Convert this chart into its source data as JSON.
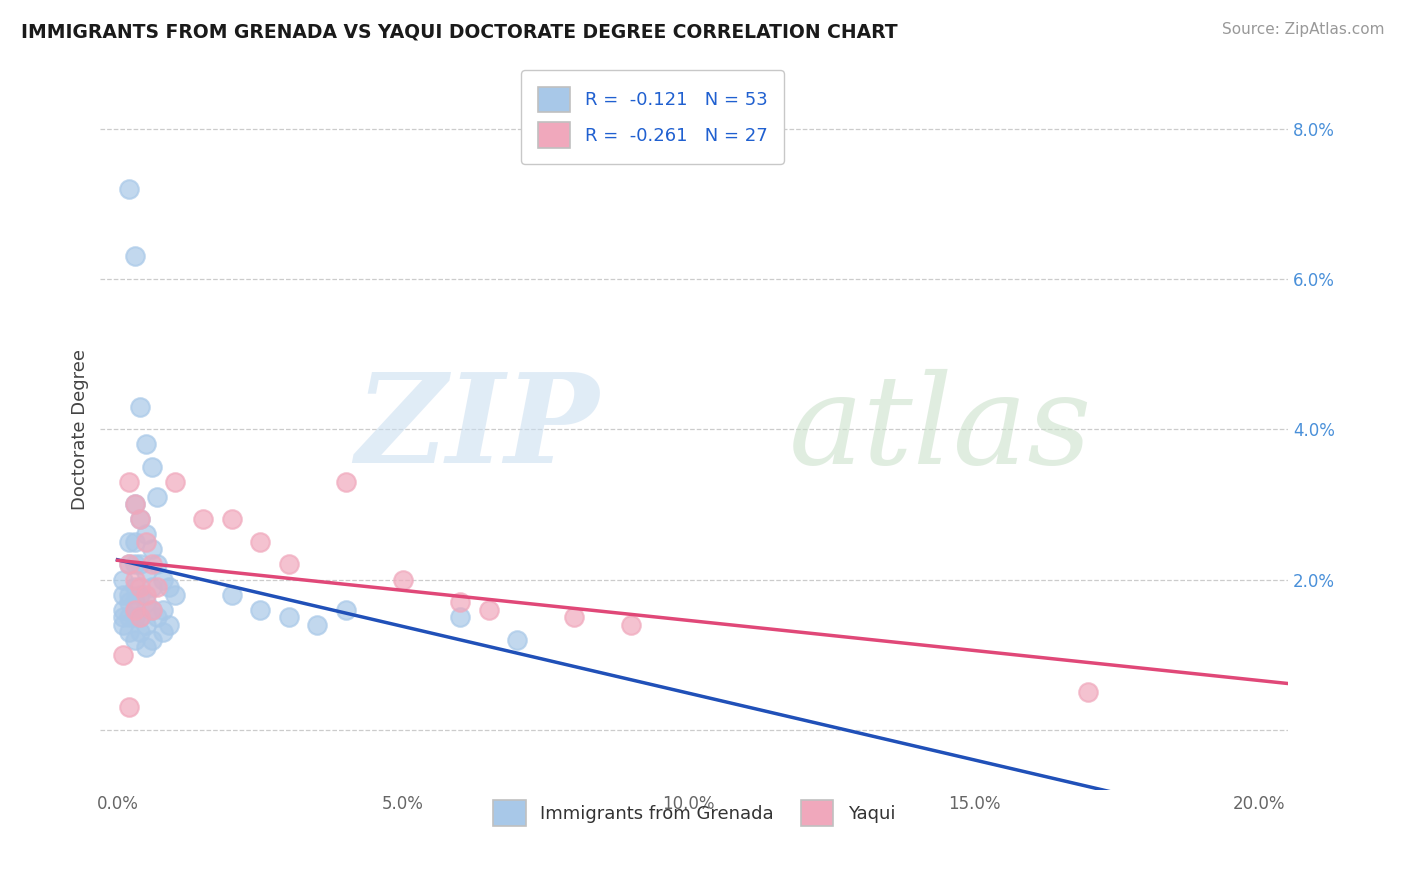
{
  "title": "IMMIGRANTS FROM GRENADA VS YAQUI DOCTORATE DEGREE CORRELATION CHART",
  "source_text": "Source: ZipAtlas.com",
  "ylabel": "Doctorate Degree",
  "legend_label_1": "Immigrants from Grenada",
  "legend_label_2": "Yaqui",
  "r1": -0.121,
  "n1": 53,
  "r2": -0.261,
  "n2": 27,
  "color1": "#a8c8e8",
  "color2": "#f0a8bc",
  "line_color1": "#2050b8",
  "line_color2": "#e04878",
  "xlim": [
    -0.003,
    0.205
  ],
  "ylim": [
    -0.008,
    0.088
  ],
  "xticks": [
    0.0,
    0.05,
    0.1,
    0.15,
    0.2
  ],
  "yticks": [
    0.0,
    0.02,
    0.04,
    0.06,
    0.08
  ],
  "xticklabels": [
    "0.0%",
    "5.0%",
    "10.0%",
    "15.0%",
    "20.0%"
  ],
  "right_yticklabels": [
    "",
    "2.0%",
    "4.0%",
    "6.0%",
    "8.0%"
  ],
  "scatter1_x": [
    0.001,
    0.001,
    0.001,
    0.001,
    0.001,
    0.002,
    0.002,
    0.002,
    0.002,
    0.002,
    0.002,
    0.002,
    0.003,
    0.003,
    0.003,
    0.003,
    0.003,
    0.003,
    0.003,
    0.003,
    0.004,
    0.004,
    0.004,
    0.004,
    0.004,
    0.004,
    0.005,
    0.005,
    0.005,
    0.005,
    0.005,
    0.005,
    0.006,
    0.006,
    0.006,
    0.006,
    0.006,
    0.007,
    0.007,
    0.007,
    0.008,
    0.008,
    0.008,
    0.009,
    0.009,
    0.01,
    0.02,
    0.025,
    0.03,
    0.035,
    0.04,
    0.06,
    0.07
  ],
  "scatter1_y": [
    0.02,
    0.018,
    0.016,
    0.015,
    0.014,
    0.072,
    0.025,
    0.022,
    0.018,
    0.017,
    0.015,
    0.013,
    0.063,
    0.03,
    0.025,
    0.022,
    0.019,
    0.017,
    0.015,
    0.012,
    0.043,
    0.028,
    0.022,
    0.018,
    0.015,
    0.013,
    0.038,
    0.026,
    0.021,
    0.017,
    0.014,
    0.011,
    0.035,
    0.024,
    0.019,
    0.016,
    0.012,
    0.031,
    0.022,
    0.015,
    0.02,
    0.016,
    0.013,
    0.019,
    0.014,
    0.018,
    0.018,
    0.016,
    0.015,
    0.014,
    0.016,
    0.015,
    0.012
  ],
  "scatter2_x": [
    0.001,
    0.002,
    0.002,
    0.003,
    0.003,
    0.003,
    0.004,
    0.004,
    0.004,
    0.005,
    0.005,
    0.006,
    0.006,
    0.007,
    0.01,
    0.015,
    0.02,
    0.025,
    0.03,
    0.04,
    0.05,
    0.06,
    0.065,
    0.08,
    0.09,
    0.17,
    0.002
  ],
  "scatter2_y": [
    0.01,
    0.033,
    0.022,
    0.03,
    0.02,
    0.016,
    0.028,
    0.019,
    0.015,
    0.025,
    0.018,
    0.022,
    0.016,
    0.019,
    0.033,
    0.028,
    0.028,
    0.025,
    0.022,
    0.033,
    0.02,
    0.017,
    0.016,
    0.015,
    0.014,
    0.005,
    0.003
  ],
  "line1_x0": 0.0,
  "line1_x1": 0.205,
  "line1_y0": 0.021,
  "line1_y1": -0.002,
  "line2_x0": 0.0,
  "line2_x1": 0.205,
  "line2_y0": 0.022,
  "line2_y1": 0.001
}
